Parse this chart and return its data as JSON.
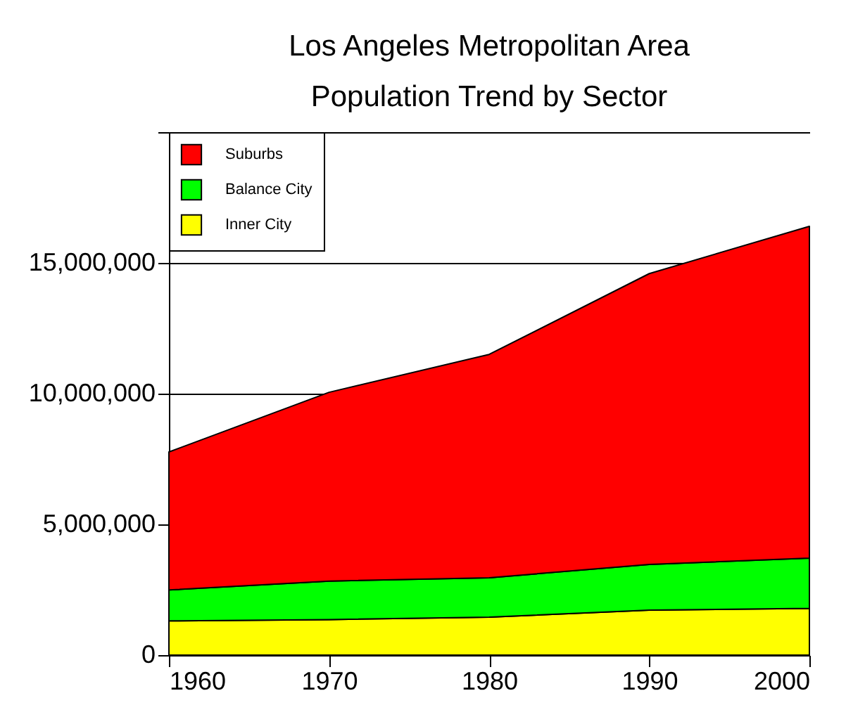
{
  "chart_data": {
    "type": "area",
    "title": "Los Angeles Metropolitan Area\nPopulation Trend by Sector",
    "stacked": true,
    "x": [
      1960,
      1970,
      1980,
      1990,
      2000
    ],
    "xlim": [
      1960,
      2000
    ],
    "xticks": [
      1960,
      1970,
      1980,
      1990,
      2000
    ],
    "ylim": [
      0,
      20000000
    ],
    "yticks": [
      0,
      {
        "value": 5000000,
        "label": "5,000,000"
      },
      {
        "value": 10000000,
        "label": "10,000,000"
      },
      {
        "value": 15000000,
        "label": "15,000,000"
      },
      {
        "value": 20000000,
        "label": null
      }
    ],
    "grid": "y",
    "legend": "top left",
    "series": [
      {
        "name": "Inner City",
        "color": "#ffff00",
        "values": [
          1310000,
          1360000,
          1450000,
          1720000,
          1790000
        ]
      },
      {
        "name": "Balance City",
        "color": "#00ff00",
        "values": [
          1180000,
          1470000,
          1510000,
          1750000,
          1920000
        ]
      },
      {
        "name": "Suburbs",
        "color": "#ff0000",
        "values": [
          5280000,
          7220000,
          8540000,
          11120000,
          12690000
        ]
      }
    ]
  }
}
